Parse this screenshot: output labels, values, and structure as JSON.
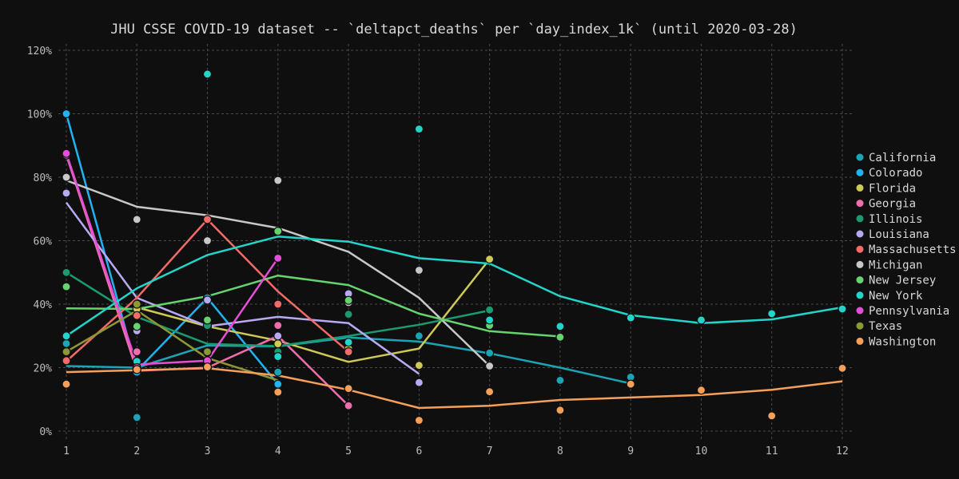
{
  "chart_data": {
    "type": "scatter",
    "title": "JHU CSSE COVID-19 dataset -- `deltapct_deaths` per `day_index_1k` (until 2020-03-28)",
    "xlabel": "",
    "ylabel": "",
    "x_ticks": [
      "1",
      "2",
      "3",
      "4",
      "5",
      "6",
      "7",
      "8",
      "9",
      "10",
      "11",
      "12"
    ],
    "y_ticks": [
      "0%",
      "20%",
      "40%",
      "60%",
      "80%",
      "100%",
      "120%"
    ],
    "xlim": [
      1,
      12
    ],
    "ylim": [
      0,
      1.2
    ],
    "grid": true,
    "legend_position": "right",
    "series": [
      {
        "name": "California",
        "color": "#1ba3b6",
        "points": [
          [
            1,
            0.276
          ],
          [
            2,
            0.043
          ],
          [
            3,
            0.248
          ],
          [
            4,
            0.186
          ],
          [
            5,
            0.279
          ],
          [
            6,
            0.3
          ],
          [
            7,
            0.246
          ],
          [
            8,
            0.16
          ],
          [
            9,
            0.17
          ]
        ],
        "line": [
          [
            1,
            0.205
          ],
          [
            2,
            0.2
          ],
          [
            3,
            0.27
          ],
          [
            4,
            0.267
          ],
          [
            5,
            0.295
          ],
          [
            6,
            0.282
          ],
          [
            7,
            0.245
          ],
          [
            8,
            0.2
          ],
          [
            9,
            0.15
          ]
        ]
      },
      {
        "name": "Colorado",
        "color": "#1fb3f0",
        "points": [
          [
            1,
            1.0
          ],
          [
            2,
            0.186
          ],
          [
            3,
            0.42
          ],
          [
            4,
            0.148
          ]
        ],
        "line": [
          [
            1,
            1.0
          ],
          [
            2,
            0.19
          ],
          [
            3,
            0.42
          ],
          [
            4,
            0.148
          ]
        ]
      },
      {
        "name": "Florida",
        "color": "#cfc957",
        "points": [
          [
            2,
            0.385
          ],
          [
            3,
            0.33
          ],
          [
            4,
            0.275
          ],
          [
            5,
            0.26
          ],
          [
            6,
            0.207
          ],
          [
            7,
            0.542
          ]
        ],
        "line": [
          [
            2,
            0.39
          ],
          [
            3,
            0.33
          ],
          [
            4,
            0.285
          ],
          [
            5,
            0.218
          ],
          [
            6,
            0.26
          ],
          [
            7,
            0.542
          ]
        ]
      },
      {
        "name": "Georgia",
        "color": "#f06dab",
        "points": [
          [
            1,
            0.87
          ],
          [
            2,
            0.25
          ],
          [
            3,
            0.2
          ],
          [
            4,
            0.333
          ],
          [
            5,
            0.08
          ]
        ],
        "line": [
          [
            1,
            0.87
          ],
          [
            2,
            0.19
          ],
          [
            3,
            0.2
          ],
          [
            4,
            0.3
          ],
          [
            5,
            0.08
          ]
        ]
      },
      {
        "name": "Illinois",
        "color": "#1b9a72",
        "points": [
          [
            1,
            0.5
          ],
          [
            2,
            0.333
          ],
          [
            3,
            0.333
          ],
          [
            4,
            0.25
          ],
          [
            5,
            0.368
          ],
          [
            7,
            0.382
          ]
        ],
        "line": [
          [
            1,
            0.5
          ],
          [
            2,
            0.36
          ],
          [
            3,
            0.275
          ],
          [
            4,
            0.268
          ],
          [
            5,
            0.3
          ],
          [
            6,
            0.335
          ],
          [
            7,
            0.38
          ]
        ]
      },
      {
        "name": "Louisiana",
        "color": "#b9a9f2",
        "points": [
          [
            1,
            0.75
          ],
          [
            2,
            0.316
          ],
          [
            3,
            0.413
          ],
          [
            4,
            0.3
          ],
          [
            5,
            0.433
          ],
          [
            6,
            0.153
          ]
        ],
        "line": [
          [
            1,
            0.72
          ],
          [
            2,
            0.42
          ],
          [
            3,
            0.33
          ],
          [
            4,
            0.36
          ],
          [
            5,
            0.34
          ],
          [
            6,
            0.18
          ]
        ]
      },
      {
        "name": "Massachusetts",
        "color": "#f26b66",
        "points": [
          [
            1,
            0.222
          ],
          [
            2,
            0.364
          ],
          [
            3,
            0.667
          ],
          [
            4,
            0.4
          ],
          [
            5,
            0.25
          ]
        ],
        "line": [
          [
            1,
            0.22
          ],
          [
            2,
            0.42
          ],
          [
            3,
            0.667
          ],
          [
            4,
            0.44
          ],
          [
            5,
            0.25
          ]
        ]
      },
      {
        "name": "Michigan",
        "color": "#c8c8c8",
        "points": [
          [
            1,
            0.8
          ],
          [
            2,
            0.667
          ],
          [
            3,
            0.6
          ],
          [
            4,
            0.79
          ],
          [
            5,
            0.405
          ],
          [
            6,
            0.507
          ],
          [
            7,
            0.205
          ]
        ],
        "line": [
          [
            1,
            0.79
          ],
          [
            2,
            0.707
          ],
          [
            3,
            0.68
          ],
          [
            4,
            0.64
          ],
          [
            5,
            0.565
          ],
          [
            6,
            0.42
          ],
          [
            7,
            0.205
          ]
        ]
      },
      {
        "name": "New Jersey",
        "color": "#67d36f",
        "points": [
          [
            1,
            0.455
          ],
          [
            2,
            0.33
          ],
          [
            3,
            0.35
          ],
          [
            4,
            0.63
          ],
          [
            5,
            0.412
          ],
          [
            7,
            0.333
          ],
          [
            8,
            0.296
          ]
        ],
        "line": [
          [
            1,
            0.387
          ],
          [
            2,
            0.385
          ],
          [
            3,
            0.425
          ],
          [
            4,
            0.49
          ],
          [
            5,
            0.46
          ],
          [
            6,
            0.37
          ],
          [
            7,
            0.315
          ],
          [
            8,
            0.298
          ]
        ]
      },
      {
        "name": "New York",
        "color": "#22d4c9",
        "points": [
          [
            1,
            0.3
          ],
          [
            2,
            0.22
          ],
          [
            3,
            1.125
          ],
          [
            4,
            0.235
          ],
          [
            5,
            0.28
          ],
          [
            6,
            0.952
          ],
          [
            7,
            0.35
          ],
          [
            8,
            0.33
          ],
          [
            9,
            0.357
          ],
          [
            10,
            0.35
          ],
          [
            11,
            0.37
          ],
          [
            12,
            0.385
          ]
        ],
        "line": [
          [
            1,
            0.3
          ],
          [
            2,
            0.45
          ],
          [
            3,
            0.555
          ],
          [
            4,
            0.613
          ],
          [
            5,
            0.597
          ],
          [
            6,
            0.545
          ],
          [
            7,
            0.528
          ],
          [
            8,
            0.425
          ],
          [
            9,
            0.365
          ],
          [
            10,
            0.34
          ],
          [
            11,
            0.352
          ],
          [
            12,
            0.39
          ]
        ]
      },
      {
        "name": "Pennsylvania",
        "color": "#e54fd6",
        "points": [
          [
            1,
            0.875
          ],
          [
            2,
            0.2
          ],
          [
            3,
            0.222
          ],
          [
            4,
            0.545
          ]
        ],
        "line": [
          [
            1,
            0.875
          ],
          [
            2,
            0.21
          ],
          [
            3,
            0.222
          ],
          [
            4,
            0.545
          ]
        ]
      },
      {
        "name": "Texas",
        "color": "#8d9736",
        "points": [
          [
            1,
            0.25
          ],
          [
            2,
            0.4
          ],
          [
            3,
            0.25
          ]
        ],
        "line": [
          [
            1,
            0.25
          ],
          [
            2,
            0.38
          ],
          [
            3,
            0.23
          ],
          [
            4,
            0.16
          ]
        ]
      },
      {
        "name": "Washington",
        "color": "#f5a05a",
        "points": [
          [
            1,
            0.148
          ],
          [
            2,
            0.194
          ],
          [
            3,
            0.202
          ],
          [
            4,
            0.123
          ],
          [
            5,
            0.134
          ],
          [
            6,
            0.034
          ],
          [
            7,
            0.124
          ],
          [
            8,
            0.066
          ],
          [
            9,
            0.148
          ],
          [
            10,
            0.129
          ],
          [
            11,
            0.048
          ],
          [
            12,
            0.198
          ]
        ],
        "line": [
          [
            1,
            0.186
          ],
          [
            2,
            0.192
          ],
          [
            3,
            0.198
          ],
          [
            4,
            0.175
          ],
          [
            5,
            0.13
          ],
          [
            6,
            0.073
          ],
          [
            7,
            0.08
          ],
          [
            8,
            0.098
          ],
          [
            9,
            0.106
          ],
          [
            10,
            0.114
          ],
          [
            11,
            0.13
          ],
          [
            12,
            0.157
          ]
        ]
      }
    ]
  }
}
